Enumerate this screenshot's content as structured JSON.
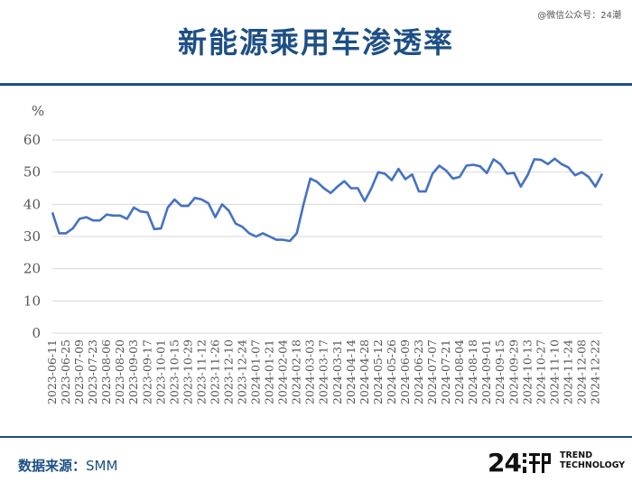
{
  "watermark": "@微信公众号：24潮",
  "title": "新能源乘用车渗透率",
  "source": {
    "label": "数据来源：",
    "value": "SMM"
  },
  "logo": {
    "number": "24",
    "line1": "TREND",
    "line2": "TECHNOLOGY"
  },
  "colors": {
    "line": "#4472c4",
    "brand": "#1d4f86",
    "grid": "#d9d9d9",
    "axis_text": "#555555"
  },
  "chart_data": {
    "type": "line",
    "ylabel": "%",
    "ylim": [
      0,
      60
    ],
    "yticks": [
      0,
      10,
      20,
      30,
      40,
      50,
      60
    ],
    "grid": true,
    "xtick_labels": [
      "2023-06-11",
      "2023-06-25",
      "2023-07-09",
      "2023-07-23",
      "2023-08-06",
      "2023-08-20",
      "2023-09-03",
      "2023-09-17",
      "2023-10-01",
      "2023-10-15",
      "2023-10-29",
      "2023-11-12",
      "2023-11-26",
      "2023-12-10",
      "2023-12-24",
      "2024-01-07",
      "2024-01-21",
      "2024-02-04",
      "2024-02-18",
      "2024-03-03",
      "2024-03-17",
      "2024-03-31",
      "2024-04-14",
      "2024-04-28",
      "2024-05-12",
      "2024-05-26",
      "2024-06-09",
      "2024-06-23",
      "2024-07-07",
      "2024-07-21",
      "2024-08-04",
      "2024-08-18",
      "2024-09-01",
      "2024-09-15",
      "2024-09-29",
      "2024-10-13",
      "2024-10-27",
      "2024-11-10",
      "2024-11-24",
      "2024-12-08",
      "2024-12-22"
    ],
    "x_start": "2023-06-11",
    "x_end": "2024-12-29",
    "x_step_days": 7,
    "values": [
      37.5,
      31,
      31,
      32.5,
      35.5,
      36,
      35,
      35,
      36.8,
      36.5,
      36.5,
      35.5,
      39,
      37.8,
      37.5,
      32.3,
      32.5,
      39,
      41.5,
      39.5,
      39.5,
      42,
      41.5,
      40.3,
      36,
      40,
      38,
      34,
      33,
      31,
      30,
      31,
      30,
      29,
      29,
      28.6,
      31,
      40,
      48,
      47,
      45,
      43.5,
      45.5,
      47.2,
      45,
      45,
      41,
      45,
      50,
      49.5,
      47.5,
      51,
      47.8,
      49.3,
      44,
      44,
      49.5,
      52,
      50.5,
      48,
      48.5,
      52,
      52.3,
      51.8,
      49.7,
      54,
      52.5,
      49.5,
      49.8,
      45.5,
      49,
      54,
      53.8,
      52.5,
      54.2,
      52.5,
      51.5,
      49,
      50,
      48.5,
      45.5,
      49.5
    ]
  }
}
